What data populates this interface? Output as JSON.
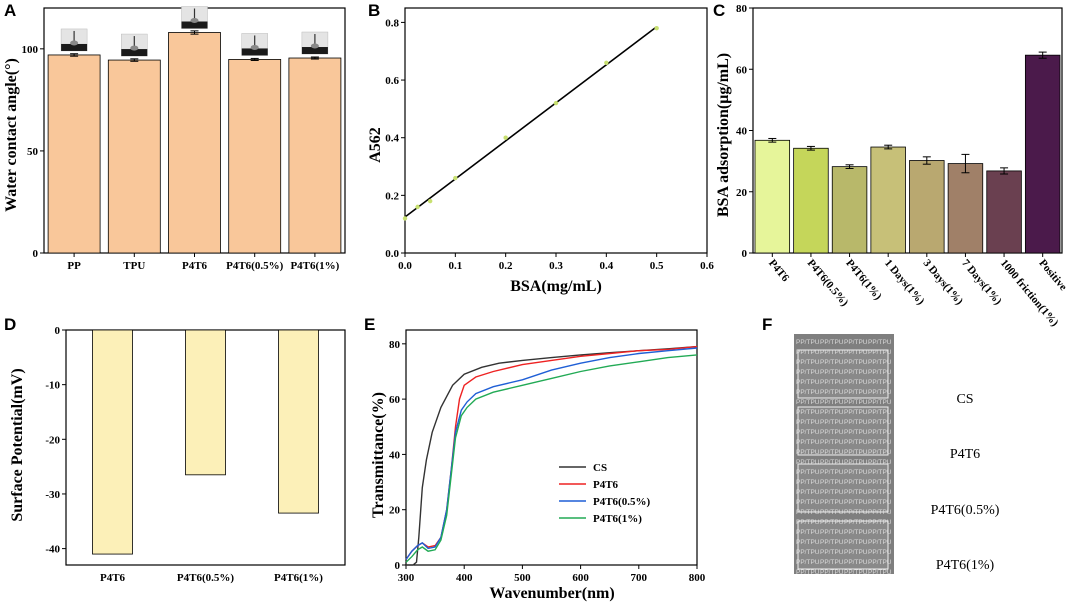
{
  "chart_data": [
    {
      "id": "A",
      "panel_label": "A",
      "type": "bar",
      "categories": [
        "PP",
        "TPU",
        "P4T6",
        "P4T6(0.5%)",
        "P4T6(1%)"
      ],
      "values": [
        97,
        94.5,
        108,
        94.8,
        95.5
      ],
      "errors": [
        0.6,
        0.6,
        0.8,
        0.5,
        0.5
      ],
      "xlabel": "",
      "ylabel": "Water contact angle(°)",
      "ylim": [
        0,
        120
      ],
      "yticks": [
        0,
        50,
        100
      ],
      "color": "#f9c79a"
    },
    {
      "id": "B",
      "panel_label": "B",
      "type": "scatter",
      "x": [
        0.0,
        0.025,
        0.05,
        0.1,
        0.2,
        0.3,
        0.4,
        0.5
      ],
      "y": [
        0.12,
        0.16,
        0.18,
        0.26,
        0.4,
        0.52,
        0.66,
        0.78
      ],
      "fit": {
        "x": [
          0.0,
          0.5
        ],
        "y": [
          0.125,
          0.785
        ]
      },
      "xlabel": "BSA(mg/mL)",
      "ylabel": "A562",
      "xlim": [
        0.0,
        0.6
      ],
      "ylim": [
        0.0,
        0.85
      ],
      "xticks": [
        "0.0",
        "0.1",
        "0.2",
        "0.3",
        "0.4",
        "0.5",
        "0.6"
      ],
      "yticks": [
        "0.0",
        "0.2",
        "0.4",
        "0.6",
        "0.8"
      ]
    },
    {
      "id": "C",
      "panel_label": "C",
      "type": "bar",
      "categories": [
        "P4T6",
        "P4T6(0.5%)",
        "P4T6(1%)",
        "1 Days(1%)",
        "3 Days(1%)",
        "7 Days(1%)",
        "1000 friction(1%)",
        "Positive"
      ],
      "values": [
        36.8,
        34.2,
        28.2,
        34.6,
        30.2,
        29.2,
        26.8,
        64.6
      ],
      "errors": [
        0.6,
        0.6,
        0.6,
        0.6,
        1.2,
        3.0,
        1.0,
        1.0
      ],
      "colors": [
        "#e6f59a",
        "#c5d65a",
        "#b8b86a",
        "#c7c078",
        "#b9a870",
        "#a08068",
        "#6a4050",
        "#4b1a4b"
      ],
      "xlabel": "",
      "ylabel": "BSA adsorption(μg/mL)",
      "ylim": [
        0,
        80
      ],
      "yticks": [
        0,
        20,
        40,
        60,
        80
      ]
    },
    {
      "id": "D",
      "panel_label": "D",
      "type": "bar",
      "categories": [
        "P4T6",
        "P4T6(0.5%)",
        "P4T6(1%)"
      ],
      "values": [
        -41,
        -26.5,
        -33.5
      ],
      "xlabel": "",
      "ylabel": "Surface Potential(mV)",
      "ylim": [
        -43,
        0
      ],
      "yticks": [
        0,
        -10,
        -20,
        -30,
        -40
      ],
      "color": "#fcf0b8"
    },
    {
      "id": "E",
      "panel_label": "E",
      "type": "line",
      "xlabel": "Wavenumber(nm)",
      "ylabel": "Transmittance(%)",
      "xlim": [
        300,
        800
      ],
      "ylim": [
        0,
        85
      ],
      "xticks": [
        300,
        400,
        500,
        600,
        700,
        800
      ],
      "yticks": [
        0,
        20,
        40,
        60,
        80
      ],
      "series": [
        {
          "name": "CS",
          "color": "#333333",
          "x": [
            300,
            312,
            318,
            322,
            328,
            335,
            345,
            360,
            380,
            400,
            430,
            460,
            500,
            550,
            600,
            650,
            700,
            750,
            800
          ],
          "y": [
            0,
            0,
            1,
            10,
            28,
            38,
            48,
            57,
            65,
            69,
            71.5,
            73,
            74,
            75,
            76,
            76.8,
            77.5,
            78.2,
            79
          ]
        },
        {
          "name": "P4T6",
          "color": "#ee2222",
          "x": [
            300,
            310,
            320,
            328,
            338,
            350,
            360,
            370,
            378,
            385,
            392,
            400,
            420,
            450,
            500,
            550,
            600,
            650,
            700,
            750,
            800
          ],
          "y": [
            2,
            5,
            7,
            8,
            6.5,
            7,
            10,
            20,
            35,
            50,
            60,
            65,
            68,
            70,
            72.5,
            74,
            75.5,
            76.5,
            77.5,
            78,
            79
          ]
        },
        {
          "name": "P4T6(0.5%)",
          "color": "#1f5fd6",
          "x": [
            300,
            310,
            320,
            328,
            338,
            350,
            360,
            370,
            378,
            385,
            395,
            405,
            420,
            450,
            500,
            550,
            600,
            650,
            700,
            750,
            800
          ],
          "y": [
            2,
            5,
            7,
            8,
            6,
            6.5,
            10,
            20,
            35,
            48,
            56,
            59,
            62,
            64.5,
            67,
            70.5,
            73,
            75,
            76.5,
            77.5,
            78.5
          ]
        },
        {
          "name": "P4T6(1%)",
          "color": "#22aa55",
          "x": [
            300,
            310,
            320,
            328,
            338,
            350,
            360,
            370,
            378,
            385,
            395,
            405,
            420,
            450,
            500,
            550,
            600,
            650,
            700,
            750,
            800
          ],
          "y": [
            1,
            3,
            5.5,
            6.5,
            5,
            5.5,
            9,
            18,
            33,
            46,
            54,
            57,
            60,
            62.5,
            65,
            67.5,
            70,
            72,
            73.5,
            75,
            76
          ]
        }
      ]
    }
  ],
  "panel_f": {
    "panel_label": "F",
    "sample_labels": [
      "CS",
      "P4T6",
      "P4T6(0.5%)",
      "P4T6(1%)"
    ],
    "background_text": "PP/TPU"
  }
}
